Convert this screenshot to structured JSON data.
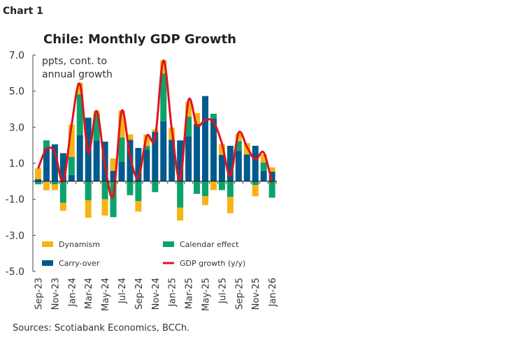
{
  "chart_label": "Chart 1",
  "source": "Sources: Scotiabank Economics, BCCh.",
  "colors": {
    "dynamism": "#F6B416",
    "calendar": "#0AA36B",
    "carry": "#005A8C",
    "gdp": "#E3121B"
  },
  "chart_data": {
    "type": "bar",
    "title": "Chile: Monthly GDP Growth",
    "ylabel": "ppts, cont. to annual growth",
    "ylim": [
      -5,
      7
    ],
    "yticks": [
      "7.0",
      "5.0",
      "3.0",
      "1.0",
      "-1.0",
      "-3.0",
      "-5.0"
    ],
    "legend_placement": "bottom",
    "categories": [
      "Sep-23",
      "Oct-23",
      "Nov-23",
      "Dec-23",
      "Jan-24",
      "Feb-24",
      "Mar-24",
      "Apr-24",
      "May-24",
      "Jun-24",
      "Jul-24",
      "Aug-24",
      "Sep-24",
      "Oct-24",
      "Nov-24",
      "Dec-24",
      "Jan-25",
      "Feb-25",
      "Mar-25",
      "Apr-25",
      "May-25",
      "Jun-25",
      "Jul-25",
      "Aug-25",
      "Sep-25",
      "Oct-25",
      "Nov-25",
      "Dec-25",
      "Jan-26"
    ],
    "xtick_labels": [
      "Sep-23",
      "Nov-23",
      "Jan-24",
      "Mar-24",
      "May-24",
      "Jul-24",
      "Sep-24",
      "Nov-24",
      "Jan-25",
      "Mar-25",
      "May-25",
      "Jul-25",
      "Sep-25",
      "Nov-25",
      "Jan-26"
    ],
    "series": [
      {
        "name": "Carry-over",
        "type": "bar",
        "values": [
          0.12,
          1.82,
          2.05,
          1.56,
          0.35,
          2.56,
          3.53,
          2.27,
          2.2,
          0.58,
          1.08,
          2.3,
          1.85,
          1.76,
          2.74,
          3.33,
          2.3,
          2.27,
          2.5,
          3.17,
          4.73,
          3.49,
          1.47,
          1.97,
          1.69,
          1.49,
          1.97,
          0.58,
          0.54
        ]
      },
      {
        "name": "Calendar effect",
        "type": "bar",
        "values": [
          -0.17,
          0.45,
          -0.17,
          -1.19,
          1.0,
          2.27,
          -1.06,
          1.44,
          -1.0,
          -1.99,
          1.35,
          -0.77,
          -1.1,
          0.2,
          -0.6,
          2.65,
          0,
          -1.46,
          1.09,
          -0.7,
          -0.83,
          0.26,
          -0.49,
          -0.87,
          0.54,
          0,
          -0.2,
          0.47,
          -0.91
        ]
      },
      {
        "name": "Dynamism",
        "type": "bar",
        "values": [
          0.6,
          -0.5,
          -0.32,
          -0.45,
          1.8,
          0.64,
          -0.96,
          0.2,
          -0.9,
          0.69,
          1.5,
          0.3,
          -0.58,
          0.64,
          0.13,
          0.73,
          0.67,
          -0.72,
          0.82,
          0.62,
          -0.49,
          -0.49,
          0.6,
          -0.9,
          0.42,
          0.63,
          -0.63,
          0.45,
          0.23
        ]
      },
      {
        "name": "GDP growth (y/y)",
        "type": "line",
        "values": [
          0.7,
          1.8,
          1.6,
          0.0,
          3.1,
          5.4,
          1.6,
          3.9,
          0.9,
          -0.8,
          3.9,
          1.4,
          0.2,
          2.5,
          2.4,
          6.7,
          2.9,
          0.1,
          4.5,
          3.1,
          3.4,
          3.3,
          2.1,
          0.3,
          2.7,
          1.9,
          1.2,
          1.6,
          -0.1
        ]
      }
    ]
  }
}
